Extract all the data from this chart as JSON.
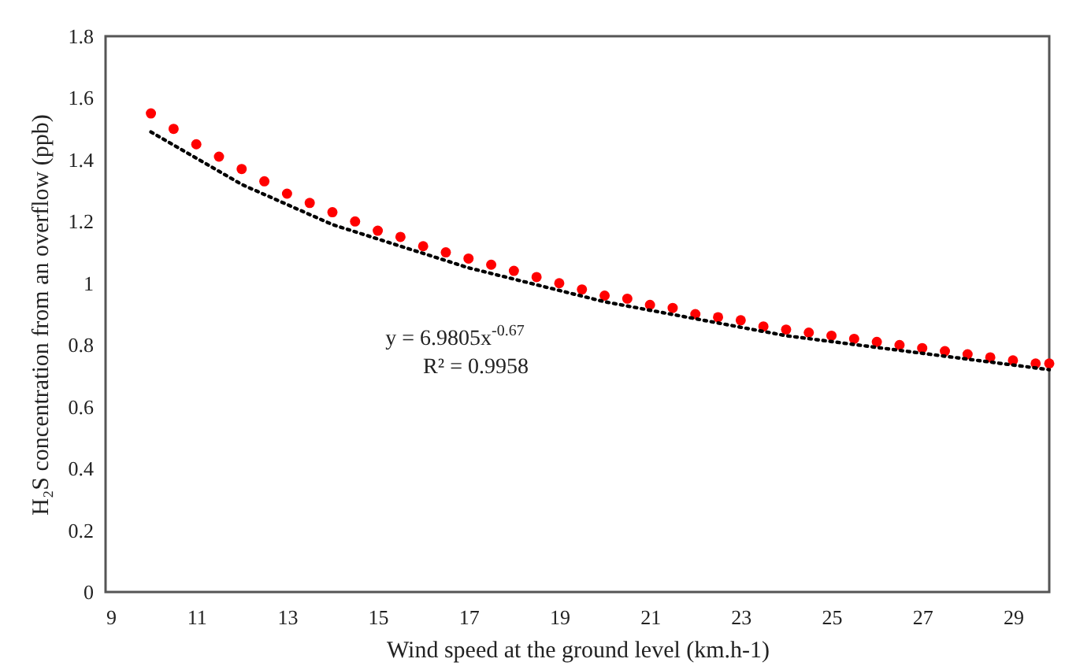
{
  "chart_data": {
    "type": "scatter",
    "xlabel": "Wind speed at the ground level (km.h-1)",
    "ylabel": "H₂S concentration from an overflow (ppb)",
    "xlim": [
      9,
      29.8
    ],
    "xticks": [
      9,
      11,
      13,
      15,
      17,
      19,
      21,
      23,
      25,
      27,
      29
    ],
    "ylim": [
      0,
      1.8
    ],
    "yticks": [
      0,
      0.2,
      0.4,
      0.6,
      0.8,
      1,
      1.2,
      1.4,
      1.6,
      1.8
    ],
    "grid": false,
    "series": [
      {
        "marker": "circle",
        "color": "#ff0000",
        "x": [
          10,
          10.5,
          11,
          11.5,
          12,
          12.5,
          13,
          13.5,
          14,
          14.5,
          15,
          15.5,
          16,
          16.5,
          17,
          17.5,
          18,
          18.5,
          19,
          19.5,
          20,
          20.5,
          21,
          21.5,
          22,
          22.5,
          23,
          23.5,
          24,
          24.5,
          25,
          25.5,
          26,
          26.5,
          27,
          27.5,
          28,
          28.5,
          29,
          29.5,
          29.8
        ],
        "values": [
          1.55,
          1.5,
          1.45,
          1.41,
          1.37,
          1.33,
          1.29,
          1.26,
          1.23,
          1.2,
          1.17,
          1.15,
          1.12,
          1.1,
          1.08,
          1.06,
          1.04,
          1.02,
          1.0,
          0.98,
          0.96,
          0.95,
          0.93,
          0.92,
          0.9,
          0.89,
          0.88,
          0.86,
          0.85,
          0.84,
          0.83,
          0.82,
          0.81,
          0.8,
          0.79,
          0.78,
          0.77,
          0.76,
          0.75,
          0.74,
          0.74
        ]
      },
      {
        "type": "line",
        "color": "#000000",
        "line_style": "dotted",
        "x": [
          10,
          12,
          14,
          17,
          20,
          24,
          29.8
        ],
        "values": [
          1.49,
          1.32,
          1.19,
          1.05,
          0.94,
          0.83,
          0.72
        ]
      }
    ],
    "annotations": [
      "y = 6.9805x$^{-0.67}$",
      "R² = 0.9958"
    ]
  }
}
